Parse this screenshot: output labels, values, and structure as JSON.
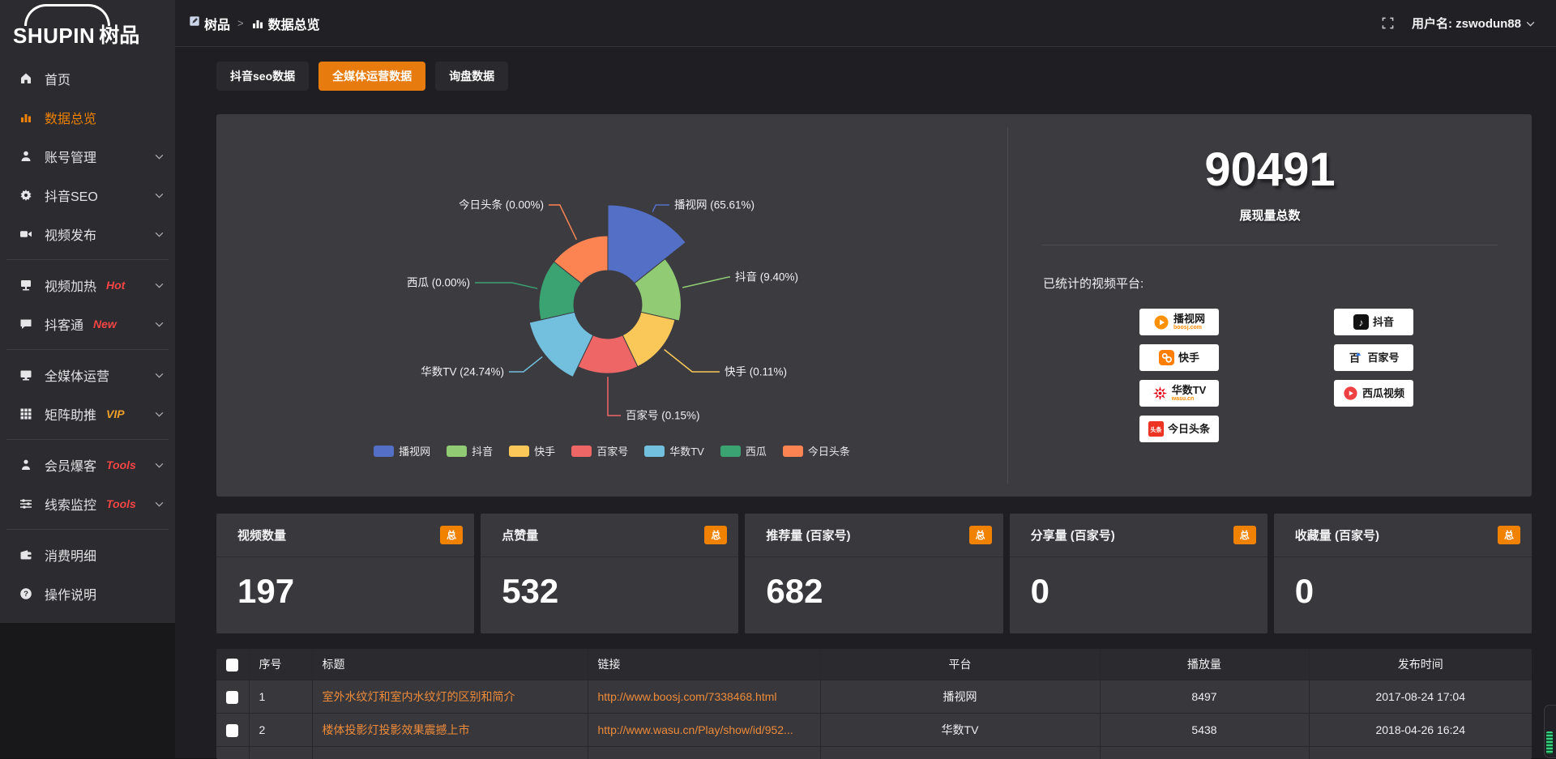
{
  "logo": {
    "main": "SHUPIN",
    "suffix": "树品"
  },
  "topbar": {
    "breadcrumb": {
      "root": "树品",
      "separator": ">",
      "current": "数据总览"
    },
    "username": "用户名: zswodun88"
  },
  "sidebar": {
    "items": [
      {
        "label": "首页",
        "icon": "home"
      },
      {
        "label": "数据总览",
        "icon": "bar-chart",
        "active": true
      },
      {
        "label": "账号管理",
        "icon": "user",
        "chevron": true
      },
      {
        "label": "抖音SEO",
        "icon": "gear",
        "chevron": true
      },
      {
        "label": "视频发布",
        "icon": "video-camera",
        "chevron": true,
        "divider_after": true
      },
      {
        "label": "视频加热",
        "icon": "screen",
        "tag": "Hot",
        "tag_color": "#f54545",
        "chevron": true
      },
      {
        "label": "抖客通",
        "icon": "chat",
        "tag": "New",
        "tag_color": "#f54545",
        "chevron": true,
        "divider_after": true
      },
      {
        "label": "全媒体运营",
        "icon": "monitor",
        "chevron": true
      },
      {
        "label": "矩阵助推",
        "icon": "grid",
        "tag": "VIP",
        "tag_color": "#efa02a",
        "chevron": true,
        "divider_after": true
      },
      {
        "label": "会员爆客",
        "icon": "person",
        "tag": "Tools",
        "tag_color": "#f54545",
        "chevron": true
      },
      {
        "label": "线索监控",
        "icon": "sliders",
        "tag": "Tools",
        "tag_color": "#f54545",
        "chevron": true,
        "divider_after": true
      },
      {
        "label": "消费明细",
        "icon": "wallet"
      },
      {
        "label": "操作说明",
        "icon": "question"
      }
    ]
  },
  "tabs": [
    {
      "label": "抖音seo数据",
      "active": false
    },
    {
      "label": "全媒体运营数据",
      "active": true
    },
    {
      "label": "询盘数据",
      "active": false
    }
  ],
  "chart_data": {
    "type": "pie",
    "subtype": "nightingale-rose-donut",
    "labels": [
      "播视网",
      "抖音",
      "快手",
      "百家号",
      "华数TV",
      "西瓜",
      "今日头条"
    ],
    "values_pct": [
      65.61,
      9.4,
      0.11,
      0.15,
      24.74,
      0.0,
      0.0
    ],
    "colors": [
      "#5470c6",
      "#91cc75",
      "#fac858",
      "#ee6666",
      "#73c0de",
      "#3ba272",
      "#fc8452"
    ],
    "label_format": "{name} ({value}%)",
    "legend": [
      "播视网",
      "抖音",
      "快手",
      "百家号",
      "华数TV",
      "西瓜",
      "今日头条"
    ],
    "legend_position": "bottom"
  },
  "summary": {
    "total": "90491",
    "total_label": "展现量总数",
    "platforms_title": "已统计的视频平台:",
    "badge_columns": {
      "left": [
        {
          "name": "播视网",
          "sub": "boosj.com",
          "icon": "boosj-logo"
        },
        {
          "name": "快手",
          "icon": "kuaishou-logo"
        },
        {
          "name": "华数TV",
          "sub": "wasu.cn",
          "icon": "wasu-logo"
        },
        {
          "name": "今日头条",
          "icon": "toutiao-logo"
        }
      ],
      "right": [
        {
          "name": "抖音",
          "icon": "douyin-logo"
        },
        {
          "name": "百家号",
          "icon": "baijiahao-logo"
        },
        {
          "name": "西瓜视频",
          "icon": "xigua-logo"
        }
      ]
    }
  },
  "stat_cards": [
    {
      "title": "视频数量",
      "badge": "总",
      "value": "197"
    },
    {
      "title": "点赞量",
      "badge": "总",
      "value": "532"
    },
    {
      "title": "推荐量 (百家号)",
      "badge": "总",
      "value": "682"
    },
    {
      "title": "分享量 (百家号)",
      "badge": "总",
      "value": "0"
    },
    {
      "title": "收藏量 (百家号)",
      "badge": "总",
      "value": "0"
    }
  ],
  "table": {
    "headers": [
      "序号",
      "标题",
      "链接",
      "平台",
      "播放量",
      "发布时间"
    ],
    "rows": [
      {
        "index": "1",
        "title": "室外水纹灯和室内水纹灯的区别和简介",
        "link": "http://www.boosj.com/7338468.html",
        "platform": "播视网",
        "views": "8497",
        "time": "2017-08-24 17:04"
      },
      {
        "index": "2",
        "title": "楼体投影灯投影效果震撼上市",
        "link": "http://www.wasu.cn/Play/show/id/952...",
        "platform": "华数TV",
        "views": "5438",
        "time": "2018-04-26 16:24"
      }
    ]
  }
}
